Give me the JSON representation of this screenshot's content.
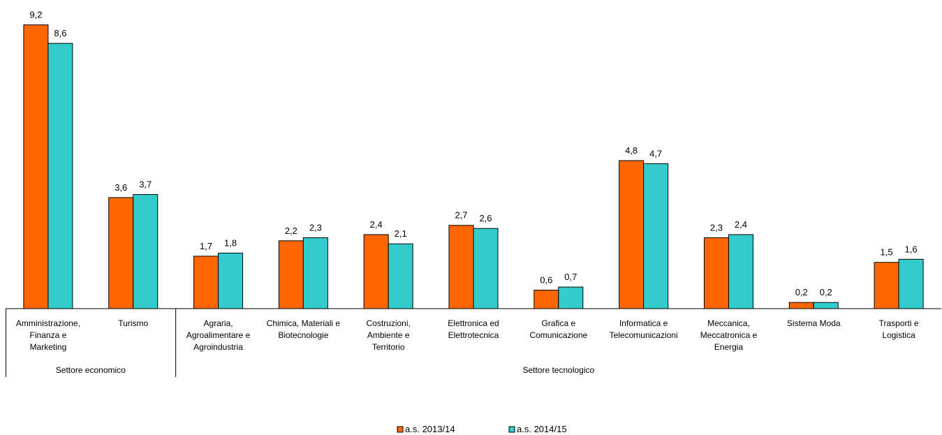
{
  "chart_data": {
    "type": "bar",
    "title": "",
    "xlabel": "",
    "ylabel": "",
    "ylim": [
      0,
      10
    ],
    "grid": false,
    "legend_position": "bottom",
    "categories": [
      [
        "Amministrazione,",
        "Finanza e",
        "Marketing"
      ],
      [
        "Turismo"
      ],
      [
        "Agraria,",
        "Agroalimentare e",
        "Agroindustria"
      ],
      [
        "Chimica, Materiali e",
        "Biotecnologie"
      ],
      [
        "Costruzioni,",
        "Ambiente e",
        "Territorio"
      ],
      [
        "Elettronica ed",
        "Elettrotecnica"
      ],
      [
        "Grafica e",
        "Comunicazione"
      ],
      [
        "Informatica e",
        "Telecomunicazioni"
      ],
      [
        "Meccanica,",
        "Meccatronica e",
        "Energia"
      ],
      [
        "Sistema Moda"
      ],
      [
        "Trasporti e",
        "Logistica"
      ]
    ],
    "groups": [
      {
        "label": "Settore economico",
        "count": 2
      },
      {
        "label": "Settore tecnologico",
        "count": 9
      }
    ],
    "series": [
      {
        "name": "a.s. 2013/14",
        "color": "#ff6600",
        "values": [
          9.2,
          3.6,
          1.7,
          2.2,
          2.4,
          2.7,
          0.6,
          4.8,
          2.3,
          0.2,
          1.5
        ],
        "labels": [
          "9,2",
          "3,6",
          "1,7",
          "2,2",
          "2,4",
          "2,7",
          "0,6",
          "4,8",
          "2,3",
          "0,2",
          "1,5"
        ]
      },
      {
        "name": "a.s. 2014/15",
        "color": "#33cccc",
        "values": [
          8.6,
          3.7,
          1.8,
          2.3,
          2.1,
          2.6,
          0.7,
          4.7,
          2.4,
          0.2,
          1.6
        ],
        "labels": [
          "8,6",
          "3,7",
          "1,8",
          "2,3",
          "2,1",
          "2,6",
          "0,7",
          "4,7",
          "2,4",
          "0,2",
          "1,6"
        ]
      }
    ]
  }
}
